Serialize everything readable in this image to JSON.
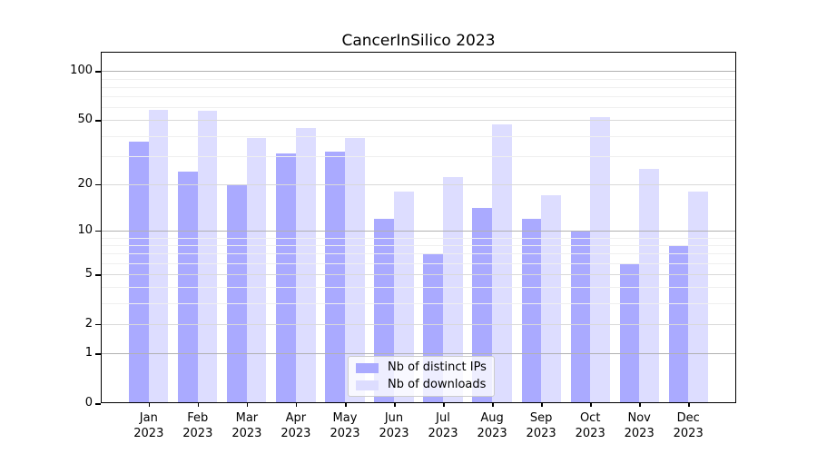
{
  "chart_data": {
    "type": "bar",
    "title": "CancerInSilico 2023",
    "categories": [
      "Jan",
      "Feb",
      "Mar",
      "Apr",
      "May",
      "Jun",
      "Jul",
      "Aug",
      "Sep",
      "Oct",
      "Nov",
      "Dec"
    ],
    "category_year": "2023",
    "series": [
      {
        "name": "Nb of distinct IPs",
        "color": "#aaaaff",
        "values": [
          37,
          24,
          20,
          31,
          32,
          12,
          7,
          14,
          12,
          10,
          6,
          8
        ]
      },
      {
        "name": "Nb of downloads",
        "color": "#ddddff",
        "values": [
          58,
          57,
          39,
          45,
          39,
          18,
          22,
          47,
          17,
          52,
          25,
          18
        ]
      }
    ],
    "yscale": "log1p",
    "ylim": [
      0,
      131
    ],
    "y_ticks": [
      0,
      1,
      2,
      5,
      10,
      20,
      50,
      100
    ],
    "y_decade_gridlines": [
      1,
      10,
      100
    ],
    "y_mid_gridlines": [
      2,
      5,
      20,
      50
    ],
    "y_minor_gridlines": [
      3,
      4,
      6,
      7,
      8,
      9,
      30,
      40,
      60,
      70,
      80,
      90
    ],
    "grid": true,
    "legend_position": "lower-center-inside",
    "colors": {
      "grid_decade": "#b1b1b1",
      "grid_mid": "#d9d9d9",
      "grid_minor": "#efefef",
      "axis": "#000000",
      "background": "#ffffff"
    }
  }
}
